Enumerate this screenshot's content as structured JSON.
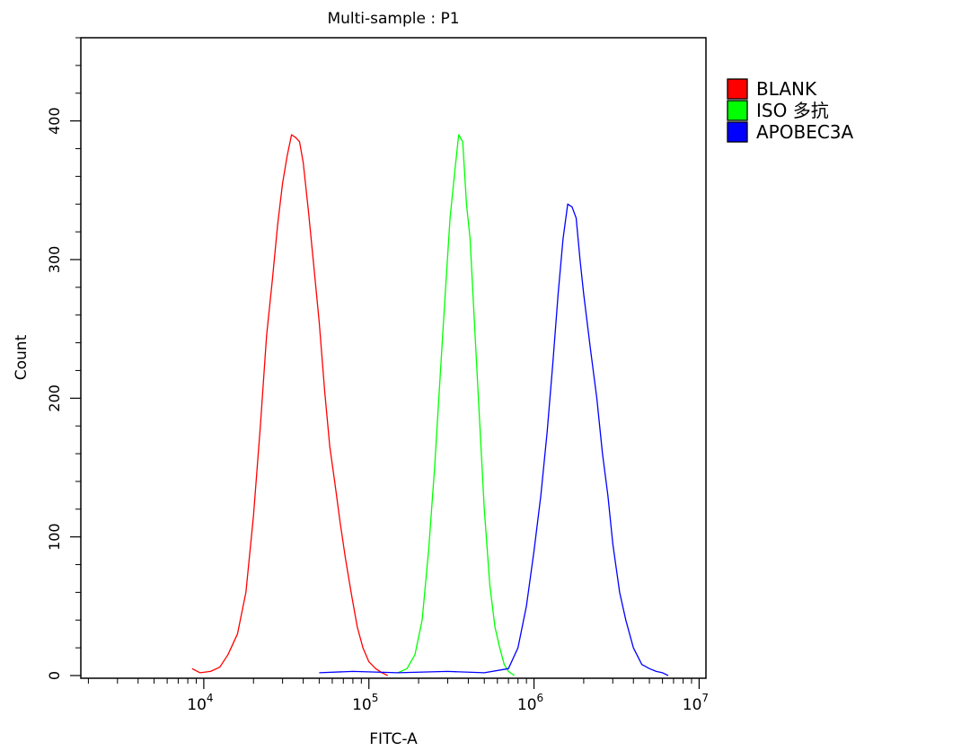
{
  "chart_data": {
    "type": "line",
    "title": "Multi-sample : P1",
    "xlabel": "FITC-A",
    "ylabel": "Count",
    "x_scale": "log",
    "xlim": [
      1800,
      11000000
    ],
    "ylim": [
      0,
      460
    ],
    "grid": false,
    "legend_position": "right",
    "x_ticks": [
      {
        "value": 10000,
        "base": "10",
        "exp": "4"
      },
      {
        "value": 100000,
        "base": "10",
        "exp": "5"
      },
      {
        "value": 1000000,
        "base": "10",
        "exp": "6"
      },
      {
        "value": 10000000,
        "base": "10",
        "exp": "7"
      }
    ],
    "y_ticks": [
      {
        "value": 0,
        "label": "0"
      },
      {
        "value": 100,
        "label": "100"
      },
      {
        "value": 200,
        "label": "200"
      },
      {
        "value": 300,
        "label": "300"
      },
      {
        "value": 400,
        "label": "400"
      }
    ],
    "series": [
      {
        "name": "BLANK",
        "color": "#ff0000",
        "x": [
          8500,
          9500,
          11000,
          12500,
          14000,
          16000,
          18000,
          20000,
          22000,
          24000,
          26000,
          28000,
          30000,
          32000,
          34000,
          36000,
          38000,
          40000,
          43000,
          46000,
          50000,
          54000,
          58000,
          62000,
          67000,
          72000,
          78000,
          85000,
          92000,
          100000,
          110000,
          120000,
          130000
        ],
        "y": [
          5,
          2,
          3,
          6,
          15,
          30,
          60,
          115,
          180,
          245,
          285,
          325,
          355,
          375,
          390,
          388,
          385,
          370,
          335,
          300,
          255,
          205,
          165,
          140,
          110,
          85,
          60,
          35,
          20,
          10,
          5,
          2,
          0
        ]
      },
      {
        "name": "ISO 多抗",
        "color": "#00ff00",
        "x": [
          150000,
          170000,
          190000,
          210000,
          230000,
          250000,
          270000,
          290000,
          310000,
          330000,
          350000,
          370000,
          390000,
          410000,
          440000,
          470000,
          500000,
          540000,
          580000,
          620000,
          660000,
          700000,
          760000
        ],
        "y": [
          2,
          5,
          15,
          40,
          90,
          150,
          215,
          275,
          330,
          362,
          390,
          385,
          340,
          315,
          245,
          180,
          120,
          65,
          35,
          20,
          8,
          3,
          0
        ]
      },
      {
        "name": "APOBEC3A",
        "color": "#0000ff",
        "x": [
          50000,
          80000,
          150000,
          300000,
          500000,
          700000,
          800000,
          900000,
          1000000,
          1100000,
          1200000,
          1300000,
          1400000,
          1500000,
          1600000,
          1700000,
          1800000,
          1900000,
          2000000,
          2200000,
          2400000,
          2600000,
          2800000,
          3000000,
          3300000,
          3600000,
          4000000,
          4500000,
          5000000,
          5500000,
          6000000,
          6500000
        ],
        "y": [
          2,
          3,
          2,
          3,
          2,
          5,
          20,
          50,
          90,
          130,
          175,
          225,
          275,
          315,
          340,
          338,
          330,
          300,
          275,
          235,
          200,
          160,
          130,
          95,
          60,
          40,
          20,
          8,
          5,
          3,
          2,
          0
        ]
      }
    ]
  }
}
